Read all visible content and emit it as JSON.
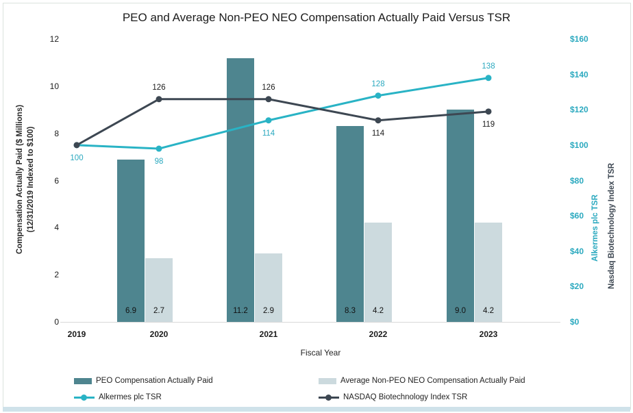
{
  "chart_data": {
    "type": "bar+line",
    "title": "PEO and Average Non-PEO NEO Compensation Actually Paid Versus TSR",
    "categories": [
      "2019",
      "2020",
      "2021",
      "2022",
      "2023"
    ],
    "x_axis_title": "Fiscal Year",
    "left_axis": {
      "title_line1": "Compensation Actually Paid ($ Millions)",
      "title_line2": "(12/31/2019 Indexed to $100)",
      "tick_values": [
        0,
        2,
        4,
        6,
        8,
        10,
        12
      ],
      "range": [
        0,
        12
      ]
    },
    "right_axis": {
      "tick_values": [
        0,
        20,
        40,
        60,
        80,
        100,
        120,
        140,
        160
      ],
      "tick_prefix": "$",
      "range": [
        0,
        160
      ],
      "title_teal": "Alkermes plc TSR",
      "title_dark": "Nasdaq Biotechnology Index TSR"
    },
    "bar_series": [
      {
        "name": "PEO Compensation Actually Paid",
        "color": "#4e858f",
        "values": [
          null,
          6.9,
          11.2,
          8.3,
          9.0
        ],
        "value_labels": [
          "",
          "6.9",
          "11.2",
          "8.3",
          "9.0"
        ]
      },
      {
        "name": "Average Non-PEO NEO Compensation Actually Paid",
        "color": "#ccdade",
        "values": [
          null,
          2.7,
          2.9,
          4.2,
          4.2
        ],
        "value_labels": [
          "",
          "2.7",
          "2.9",
          "4.2",
          "4.2"
        ]
      }
    ],
    "line_series": [
      {
        "name": "Alkermes plc TSR",
        "color": "#29b3c5",
        "label_color": "#2ba9bf",
        "values": [
          100,
          98,
          114,
          128,
          138
        ],
        "value_labels": [
          "100",
          "98",
          "114",
          "128",
          "138"
        ],
        "label_sides": [
          "below",
          "below",
          "below",
          "above",
          "above"
        ]
      },
      {
        "name": "NASDAQ Biotechnology Index TSR",
        "color": "#3d4752",
        "label_color": "#1a1a1a",
        "values": [
          100,
          126,
          126,
          114,
          119
        ],
        "value_labels": [
          "",
          "126",
          "126",
          "114",
          "119"
        ],
        "label_sides": [
          "none",
          "above",
          "above",
          "below",
          "below"
        ]
      }
    ],
    "legend": [
      {
        "label": "PEO Compensation Actually Paid",
        "swatch": "rect",
        "color": "#4e858f"
      },
      {
        "label": "Average Non-PEO NEO Compensation Actually Paid",
        "swatch": "rect",
        "color": "#ccdade"
      },
      {
        "label": "Alkermes plc TSR",
        "swatch": "line",
        "color": "#29b3c5"
      },
      {
        "label": "NASDAQ Biotechnology Index TSR",
        "swatch": "line",
        "color": "#3d4752"
      }
    ],
    "axis_line_color": "#d9d9d9",
    "grid": "off",
    "legend_position": "bottom"
  }
}
